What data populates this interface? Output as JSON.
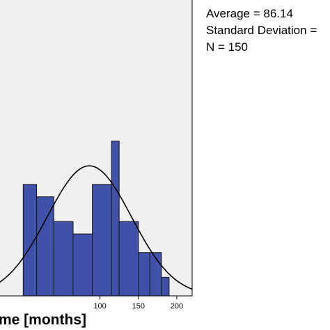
{
  "chart_data": {
    "type": "bar",
    "xlabel": "me [months]",
    "xticks": [
      100,
      150,
      200
    ],
    "xlim": [
      -32,
      220
    ],
    "ylim": [
      0,
      24
    ],
    "bin_width": 12.5,
    "bins": [
      {
        "x0": 0,
        "x1": 17.5,
        "count": 9
      },
      {
        "x0": 17.5,
        "x1": 40,
        "count": 8
      },
      {
        "x0": 40,
        "x1": 65,
        "count": 6
      },
      {
        "x0": 65,
        "x1": 90,
        "count": 5
      },
      {
        "x0": 90,
        "x1": 115,
        "count": 9
      },
      {
        "x0": 115,
        "x1": 125,
        "count": 12.5
      },
      {
        "x0": 125,
        "x1": 150,
        "count": 6
      },
      {
        "x0": 150,
        "x1": 165,
        "count": 3.5
      },
      {
        "x0": 165,
        "x1": 180,
        "count": 3.5
      },
      {
        "x0": 180,
        "x1": 190,
        "count": 1.5
      }
    ],
    "normal_curve": {
      "mean": 86.14,
      "peak_count": 10.5,
      "sd_display": 55
    },
    "colors": {
      "bar_fill": "#3F51A8",
      "bar_stroke": "#1a1a1a",
      "plot_bg": "#f0f0f0",
      "curve": "#000000"
    }
  },
  "stats": {
    "average": "Average = 86.14",
    "std_dev": "Standard Deviation =",
    "n": "N = 150"
  }
}
